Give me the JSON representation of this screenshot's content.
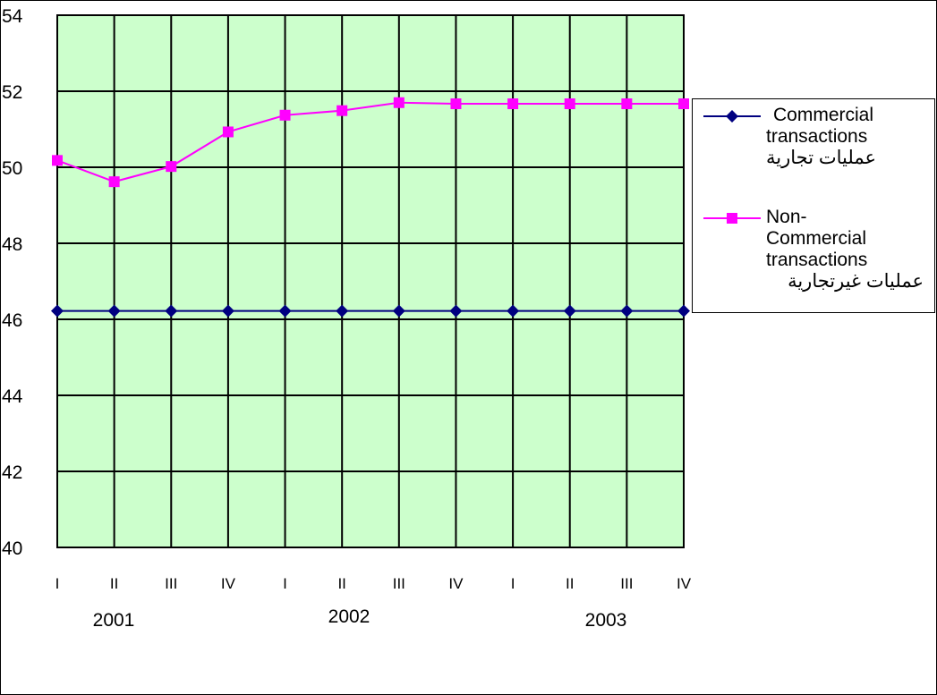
{
  "chart_data": {
    "type": "line",
    "title": "",
    "xlabel": "",
    "ylabel": "",
    "categories": [
      "I",
      "II",
      "III",
      "IV",
      "I",
      "II",
      "III",
      "IV",
      "I",
      "II",
      "III",
      "IV"
    ],
    "year_labels": [
      "2001",
      "2002",
      "2003"
    ],
    "ylim": [
      40,
      54
    ],
    "yticks": [
      "40",
      "42",
      "44",
      "46",
      "48",
      "50",
      "52",
      "54"
    ],
    "grid": true,
    "legend_position": "right",
    "plot_background": "#CCFFCC",
    "series": [
      {
        "name_lines": [
          "Commercial",
          "transactions",
          "عمليات تجارية"
        ],
        "color": "#000080",
        "marker": "diamond",
        "values": [
          46.22,
          46.22,
          46.22,
          46.22,
          46.22,
          46.22,
          46.22,
          46.22,
          46.22,
          46.22,
          46.22,
          46.22
        ]
      },
      {
        "name_lines": [
          "Non-",
          "Commercial",
          "transactions",
          "عمليات  غيرتجارية"
        ],
        "color": "#FF00FF",
        "marker": "square",
        "values": [
          50.18,
          49.62,
          50.02,
          50.93,
          51.37,
          51.49,
          51.7,
          51.67,
          51.67,
          51.67,
          51.67,
          51.67
        ]
      }
    ]
  }
}
